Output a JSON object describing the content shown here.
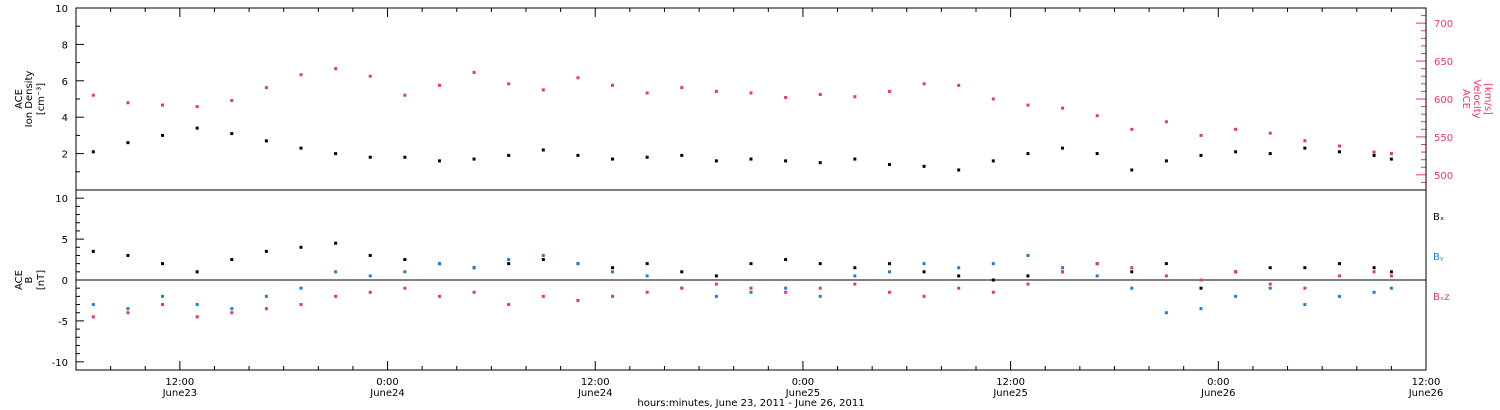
{
  "colors": {
    "ink": "#000000",
    "velocity": "#e8386a",
    "by": "#1f7fd6",
    "bz": "#e8386a"
  },
  "figure": {
    "xlabel": "hours:minutes, June 23, 2011 - June 26, 2011"
  },
  "chart_data": [
    {
      "type": "scatter",
      "panel": "top",
      "ylabel": "ACE Ion Density [cm⁻³]",
      "ylabel_lines": [
        "ACE",
        "Ion Density",
        "[cm⁻³]"
      ],
      "ylim": [
        0,
        10
      ],
      "yticks": [
        2,
        4,
        6,
        8,
        10
      ],
      "y2label": "ACE Velocity [km/s]",
      "y2label_lines": [
        "ACE",
        "Velocity",
        "[km/s]"
      ],
      "y2lim": [
        480,
        720
      ],
      "y2ticks": [
        500,
        550,
        600,
        650,
        700
      ],
      "xlim_hours": [
        6,
        84
      ],
      "series": [
        {
          "axis": "left",
          "color": "#000000",
          "points": [
            [
              7,
              2.1
            ],
            [
              9,
              2.6
            ],
            [
              11,
              3.0
            ],
            [
              13,
              3.4
            ],
            [
              15,
              3.1
            ],
            [
              17,
              2.7
            ],
            [
              19,
              2.3
            ],
            [
              21,
              2.0
            ],
            [
              23,
              1.8
            ],
            [
              25,
              1.8
            ],
            [
              27,
              1.6
            ],
            [
              29,
              1.7
            ],
            [
              31,
              1.9
            ],
            [
              33,
              2.2
            ],
            [
              35,
              1.9
            ],
            [
              37,
              1.7
            ],
            [
              39,
              1.8
            ],
            [
              41,
              1.9
            ],
            [
              43,
              1.6
            ],
            [
              45,
              1.7
            ],
            [
              47,
              1.6
            ],
            [
              49,
              1.5
            ],
            [
              51,
              1.7
            ],
            [
              53,
              1.4
            ],
            [
              55,
              1.3
            ],
            [
              57,
              1.1
            ],
            [
              59,
              1.6
            ],
            [
              61,
              2.0
            ],
            [
              63,
              2.3
            ],
            [
              65,
              2.0
            ],
            [
              67,
              1.1
            ],
            [
              69,
              1.6
            ],
            [
              71,
              1.9
            ],
            [
              73,
              2.1
            ],
            [
              75,
              2.0
            ],
            [
              77,
              2.3
            ],
            [
              79,
              2.1
            ],
            [
              81,
              1.9
            ],
            [
              82,
              1.7
            ]
          ]
        },
        {
          "axis": "right",
          "color": "#e8386a",
          "points": [
            [
              7,
              605
            ],
            [
              9,
              595
            ],
            [
              11,
              592
            ],
            [
              13,
              590
            ],
            [
              15,
              598
            ],
            [
              17,
              615
            ],
            [
              19,
              632
            ],
            [
              21,
              640
            ],
            [
              23,
              630
            ],
            [
              25,
              605
            ],
            [
              27,
              618
            ],
            [
              29,
              635
            ],
            [
              31,
              620
            ],
            [
              33,
              612
            ],
            [
              35,
              628
            ],
            [
              37,
              618
            ],
            [
              39,
              608
            ],
            [
              41,
              615
            ],
            [
              43,
              610
            ],
            [
              45,
              608
            ],
            [
              47,
              602
            ],
            [
              49,
              606
            ],
            [
              51,
              603
            ],
            [
              53,
              610
            ],
            [
              55,
              620
            ],
            [
              57,
              618
            ],
            [
              59,
              600
            ],
            [
              61,
              592
            ],
            [
              63,
              588
            ],
            [
              65,
              578
            ],
            [
              67,
              560
            ],
            [
              69,
              570
            ],
            [
              71,
              552
            ],
            [
              73,
              560
            ],
            [
              75,
              555
            ],
            [
              77,
              545
            ],
            [
              79,
              538
            ],
            [
              81,
              530
            ],
            [
              82,
              528
            ]
          ]
        }
      ]
    },
    {
      "type": "scatter",
      "panel": "bottom",
      "ylabel": "ACE B [nT]",
      "ylabel_lines": [
        "ACE",
        "B",
        "[nT]"
      ],
      "ylim": [
        -11,
        11
      ],
      "yticks": [
        -10,
        -5,
        0,
        5,
        10
      ],
      "xlim_hours": [
        6,
        84
      ],
      "xticks": [
        {
          "hour": 12,
          "time": "12:00",
          "date": "June23"
        },
        {
          "hour": 24,
          "time": "0:00",
          "date": "June24"
        },
        {
          "hour": 36,
          "time": "12:00",
          "date": "June24"
        },
        {
          "hour": 48,
          "time": "0:00",
          "date": "June25"
        },
        {
          "hour": 60,
          "time": "12:00",
          "date": "June25"
        },
        {
          "hour": 72,
          "time": "0:00",
          "date": "June26"
        },
        {
          "hour": 84,
          "time": "12:00",
          "date": "June26"
        }
      ],
      "legend_position": "right",
      "series": [
        {
          "name": "Bₓ",
          "color": "#000000",
          "points": [
            [
              7,
              3.5
            ],
            [
              9,
              3.0
            ],
            [
              11,
              2.0
            ],
            [
              13,
              1.0
            ],
            [
              15,
              2.5
            ],
            [
              17,
              3.5
            ],
            [
              19,
              4.0
            ],
            [
              21,
              4.5
            ],
            [
              23,
              3.0
            ],
            [
              25,
              2.5
            ],
            [
              27,
              2.0
            ],
            [
              29,
              1.5
            ],
            [
              31,
              2.0
            ],
            [
              33,
              2.5
            ],
            [
              35,
              2.0
            ],
            [
              37,
              1.5
            ],
            [
              39,
              2.0
            ],
            [
              41,
              1.0
            ],
            [
              43,
              0.5
            ],
            [
              45,
              2.0
            ],
            [
              47,
              2.5
            ],
            [
              49,
              2.0
            ],
            [
              51,
              1.5
            ],
            [
              53,
              2.0
            ],
            [
              55,
              1.0
            ],
            [
              57,
              0.5
            ],
            [
              59,
              0.0
            ],
            [
              61,
              0.5
            ],
            [
              63,
              1.0
            ],
            [
              65,
              2.0
            ],
            [
              67,
              1.0
            ],
            [
              69,
              2.0
            ],
            [
              71,
              -1.0
            ],
            [
              73,
              1.0
            ],
            [
              75,
              1.5
            ],
            [
              77,
              1.5
            ],
            [
              79,
              2.0
            ],
            [
              81,
              1.5
            ],
            [
              82,
              1.0
            ]
          ]
        },
        {
          "name": "Bᵧ",
          "color": "#1f7fd6",
          "points": [
            [
              7,
              -3.0
            ],
            [
              9,
              -3.5
            ],
            [
              11,
              -2.0
            ],
            [
              13,
              -3.0
            ],
            [
              15,
              -3.5
            ],
            [
              17,
              -2.0
            ],
            [
              19,
              -1.0
            ],
            [
              21,
              1.0
            ],
            [
              23,
              0.5
            ],
            [
              25,
              1.0
            ],
            [
              27,
              2.0
            ],
            [
              29,
              1.5
            ],
            [
              31,
              2.5
            ],
            [
              33,
              3.0
            ],
            [
              35,
              2.0
            ],
            [
              37,
              1.0
            ],
            [
              39,
              0.5
            ],
            [
              41,
              -1.0
            ],
            [
              43,
              -2.0
            ],
            [
              45,
              -1.5
            ],
            [
              47,
              -1.0
            ],
            [
              49,
              -2.0
            ],
            [
              51,
              0.5
            ],
            [
              53,
              1.0
            ],
            [
              55,
              2.0
            ],
            [
              57,
              1.5
            ],
            [
              59,
              2.0
            ],
            [
              61,
              3.0
            ],
            [
              63,
              1.5
            ],
            [
              65,
              0.5
            ],
            [
              67,
              -1.0
            ],
            [
              69,
              -4.0
            ],
            [
              71,
              -3.5
            ],
            [
              73,
              -2.0
            ],
            [
              75,
              -1.0
            ],
            [
              77,
              -3.0
            ],
            [
              79,
              -2.0
            ],
            [
              81,
              -1.5
            ],
            [
              82,
              -1.0
            ]
          ]
        },
        {
          "name": "Bₓz",
          "color": "#e8386a",
          "points": [
            [
              7,
              -4.5
            ],
            [
              9,
              -4.0
            ],
            [
              11,
              -3.0
            ],
            [
              13,
              -4.5
            ],
            [
              15,
              -4.0
            ],
            [
              17,
              -3.5
            ],
            [
              19,
              -3.0
            ],
            [
              21,
              -2.0
            ],
            [
              23,
              -1.5
            ],
            [
              25,
              -1.0
            ],
            [
              27,
              -2.0
            ],
            [
              29,
              -1.5
            ],
            [
              31,
              -3.0
            ],
            [
              33,
              -2.0
            ],
            [
              35,
              -2.5
            ],
            [
              37,
              -2.0
            ],
            [
              39,
              -1.5
            ],
            [
              41,
              -1.0
            ],
            [
              43,
              -0.5
            ],
            [
              45,
              -1.0
            ],
            [
              47,
              -1.5
            ],
            [
              49,
              -1.0
            ],
            [
              51,
              -0.5
            ],
            [
              53,
              -1.5
            ],
            [
              55,
              -2.0
            ],
            [
              57,
              -1.0
            ],
            [
              59,
              -1.5
            ],
            [
              61,
              -0.5
            ],
            [
              63,
              1.0
            ],
            [
              65,
              2.0
            ],
            [
              67,
              1.5
            ],
            [
              69,
              0.5
            ],
            [
              71,
              0.0
            ],
            [
              73,
              1.0
            ],
            [
              75,
              -0.5
            ],
            [
              77,
              -1.0
            ],
            [
              79,
              0.5
            ],
            [
              81,
              1.0
            ],
            [
              82,
              0.5
            ]
          ]
        }
      ]
    }
  ]
}
